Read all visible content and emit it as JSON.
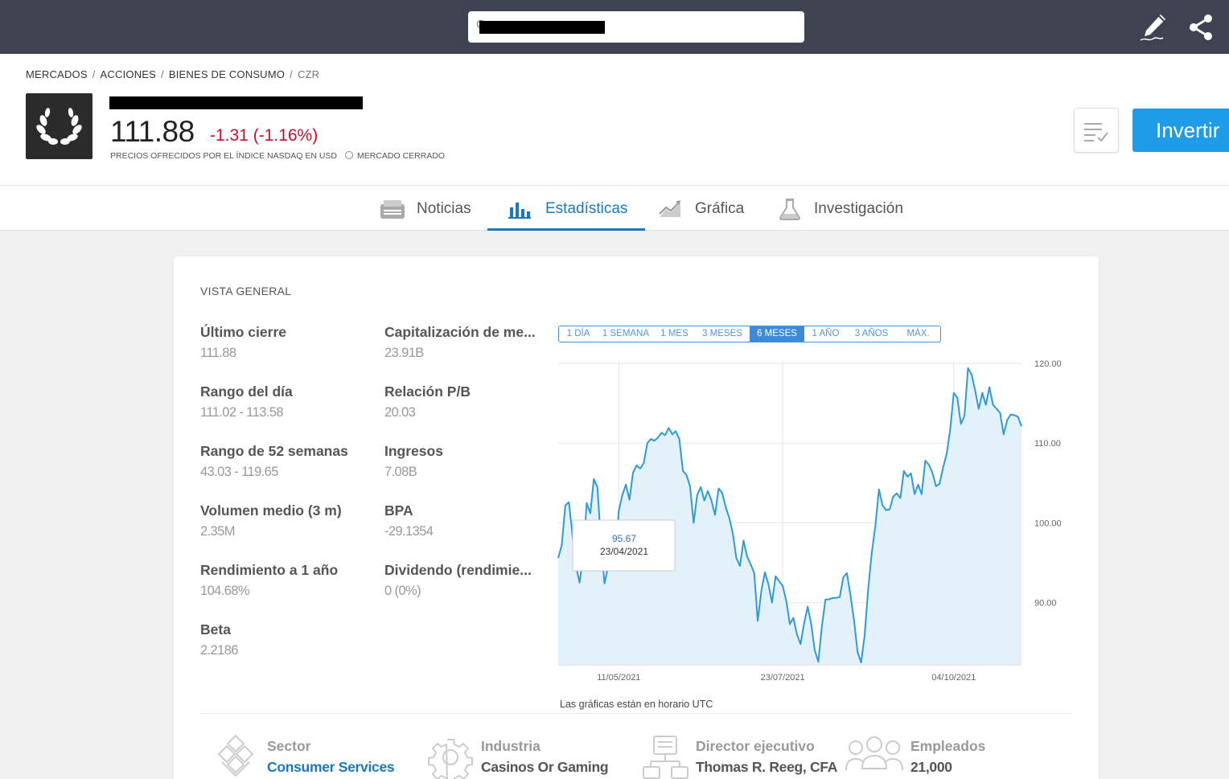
{
  "topbar": {
    "search_placeholder": "",
    "icons": [
      "edit-pencil-icon",
      "share-icon"
    ]
  },
  "breadcrumb": [
    "MERCADOS",
    "ACCIONES",
    "BIENES DE CONSUMO",
    "CZR"
  ],
  "instrument": {
    "price": "111.88",
    "change": "-1.31 (-1.16%)",
    "price_note": "PRECIOS OFRECIDOS POR EL ÍNDICE NASDAQ EN USD",
    "market_status": "MERCADO CERRADO",
    "invest_label": "Invertir",
    "colors": {
      "negative": "#c8102e",
      "accent": "#1e9ce8"
    }
  },
  "tabs": [
    {
      "label": "Noticias",
      "icon": "newspaper-icon"
    },
    {
      "label": "Estadísticas",
      "icon": "bar-chart-icon",
      "active": true
    },
    {
      "label": "Gráfica",
      "icon": "trend-chart-icon"
    },
    {
      "label": "Investigación",
      "icon": "flask-icon"
    }
  ],
  "overview": {
    "title": "VISTA GENERAL",
    "left": [
      {
        "label": "Último cierre",
        "value": "111.88"
      },
      {
        "label": "Rango del día",
        "value": "111.02 - 113.58"
      },
      {
        "label": "Rango de 52 semanas",
        "value": "43.03 - 119.65"
      },
      {
        "label": "Volumen medio (3 m)",
        "value": "2.35M"
      },
      {
        "label": "Rendimiento a 1 año",
        "value": "104.68%"
      },
      {
        "label": "Beta",
        "value": "2.2186"
      }
    ],
    "right": [
      {
        "label": "Capitalización de me...",
        "value": "23.91B"
      },
      {
        "label": "Relación P/B",
        "value": "20.03"
      },
      {
        "label": "Ingresos",
        "value": "7.08B"
      },
      {
        "label": "BPA",
        "value": "-29.1354"
      },
      {
        "label": "Dividendo (rendimie...",
        "value": "0 (0%)"
      }
    ]
  },
  "ranges": [
    "1 DÍA",
    "1 SEMANA",
    "1 MES",
    "3 MESES",
    "6 MESES",
    "1 AÑO",
    "3 AÑOS",
    "MÁX."
  ],
  "active_range": "6 MESES",
  "chart_note": "Las gráficas están en horario UTC",
  "tooltip": {
    "value": "95.67",
    "date": "23/04/2021"
  },
  "chart_data": {
    "type": "area",
    "title": "",
    "xlabel": "",
    "ylabel": "",
    "x_ticks": [
      "11/05/2021",
      "23/07/2021",
      "04/10/2021"
    ],
    "y_ticks": [
      "90.00",
      "100.00",
      "110.00",
      "120.00"
    ],
    "ylim": [
      82.2,
      120.3
    ],
    "axis_side": "right",
    "grid": true,
    "color": "#2e9bd6",
    "fill": "#e3f1fb",
    "series": [
      {
        "values": [
          95.6,
          97.2,
          102.2,
          102.6,
          98.5,
          94.5,
          92.5,
          95.8,
          102.5,
          101.2,
          105.5,
          104.5,
          97.6,
          92.4,
          94.5,
          96.5,
          95.3,
          101.5,
          103.5,
          104.8,
          102.9,
          106.3,
          107.2,
          106.8,
          107.5,
          110.0,
          110.5,
          110.3,
          110.7,
          111.3,
          111.0,
          111.9,
          111.1,
          111.5,
          110.5,
          106.5,
          106.0,
          104.6,
          100.0,
          103.5,
          104.5,
          102.8,
          104.0,
          102.8,
          101.0,
          104.3,
          103.8,
          102.0,
          100.6,
          98.7,
          95.6,
          94.6,
          97.8,
          95.8,
          94.8,
          93.7,
          87.7,
          91.5,
          93.8,
          92.3,
          90.0,
          93.3,
          92.7,
          92.1,
          90.2,
          87.3,
          88.1,
          86.0,
          84.8,
          87.4,
          89.5,
          87.3,
          84.0,
          82.6,
          87.1,
          90.4,
          90.4,
          90.6,
          90.6,
          90.7,
          93.2,
          93.7,
          91.0,
          87.8,
          83.8,
          82.5,
          85.9,
          91.8,
          96.3,
          99.6,
          104.2,
          102.2,
          101.6,
          101.7,
          103.3,
          103.7,
          103.1,
          106.5,
          105.8,
          106.2,
          103.6,
          104.8,
          103.6,
          107.8,
          107.3,
          106.3,
          104.6,
          104.9,
          106.9,
          108.7,
          111.7,
          116.3,
          115.7,
          112.4,
          113.4,
          119.4,
          118.6,
          116.6,
          114.3,
          116.3,
          114.8,
          117.0,
          114.8,
          114.3,
          113.8,
          111.1,
          112.9,
          113.6,
          113.5,
          113.3,
          112.1
        ]
      }
    ]
  },
  "company_info": [
    {
      "label": "Sector",
      "value": "Consumer Services",
      "icon": "sector-diamonds-icon",
      "link": true
    },
    {
      "label": "Industria",
      "value": "Casinos Or Gaming",
      "icon": "gear-icon",
      "link": false
    },
    {
      "label": "Director ejecutivo",
      "value": "Thomas R. Reeg, CFA",
      "icon": "org-chart-icon",
      "link": false
    },
    {
      "label": "Empleados",
      "value": "21,000",
      "icon": "people-icon",
      "link": false
    }
  ]
}
